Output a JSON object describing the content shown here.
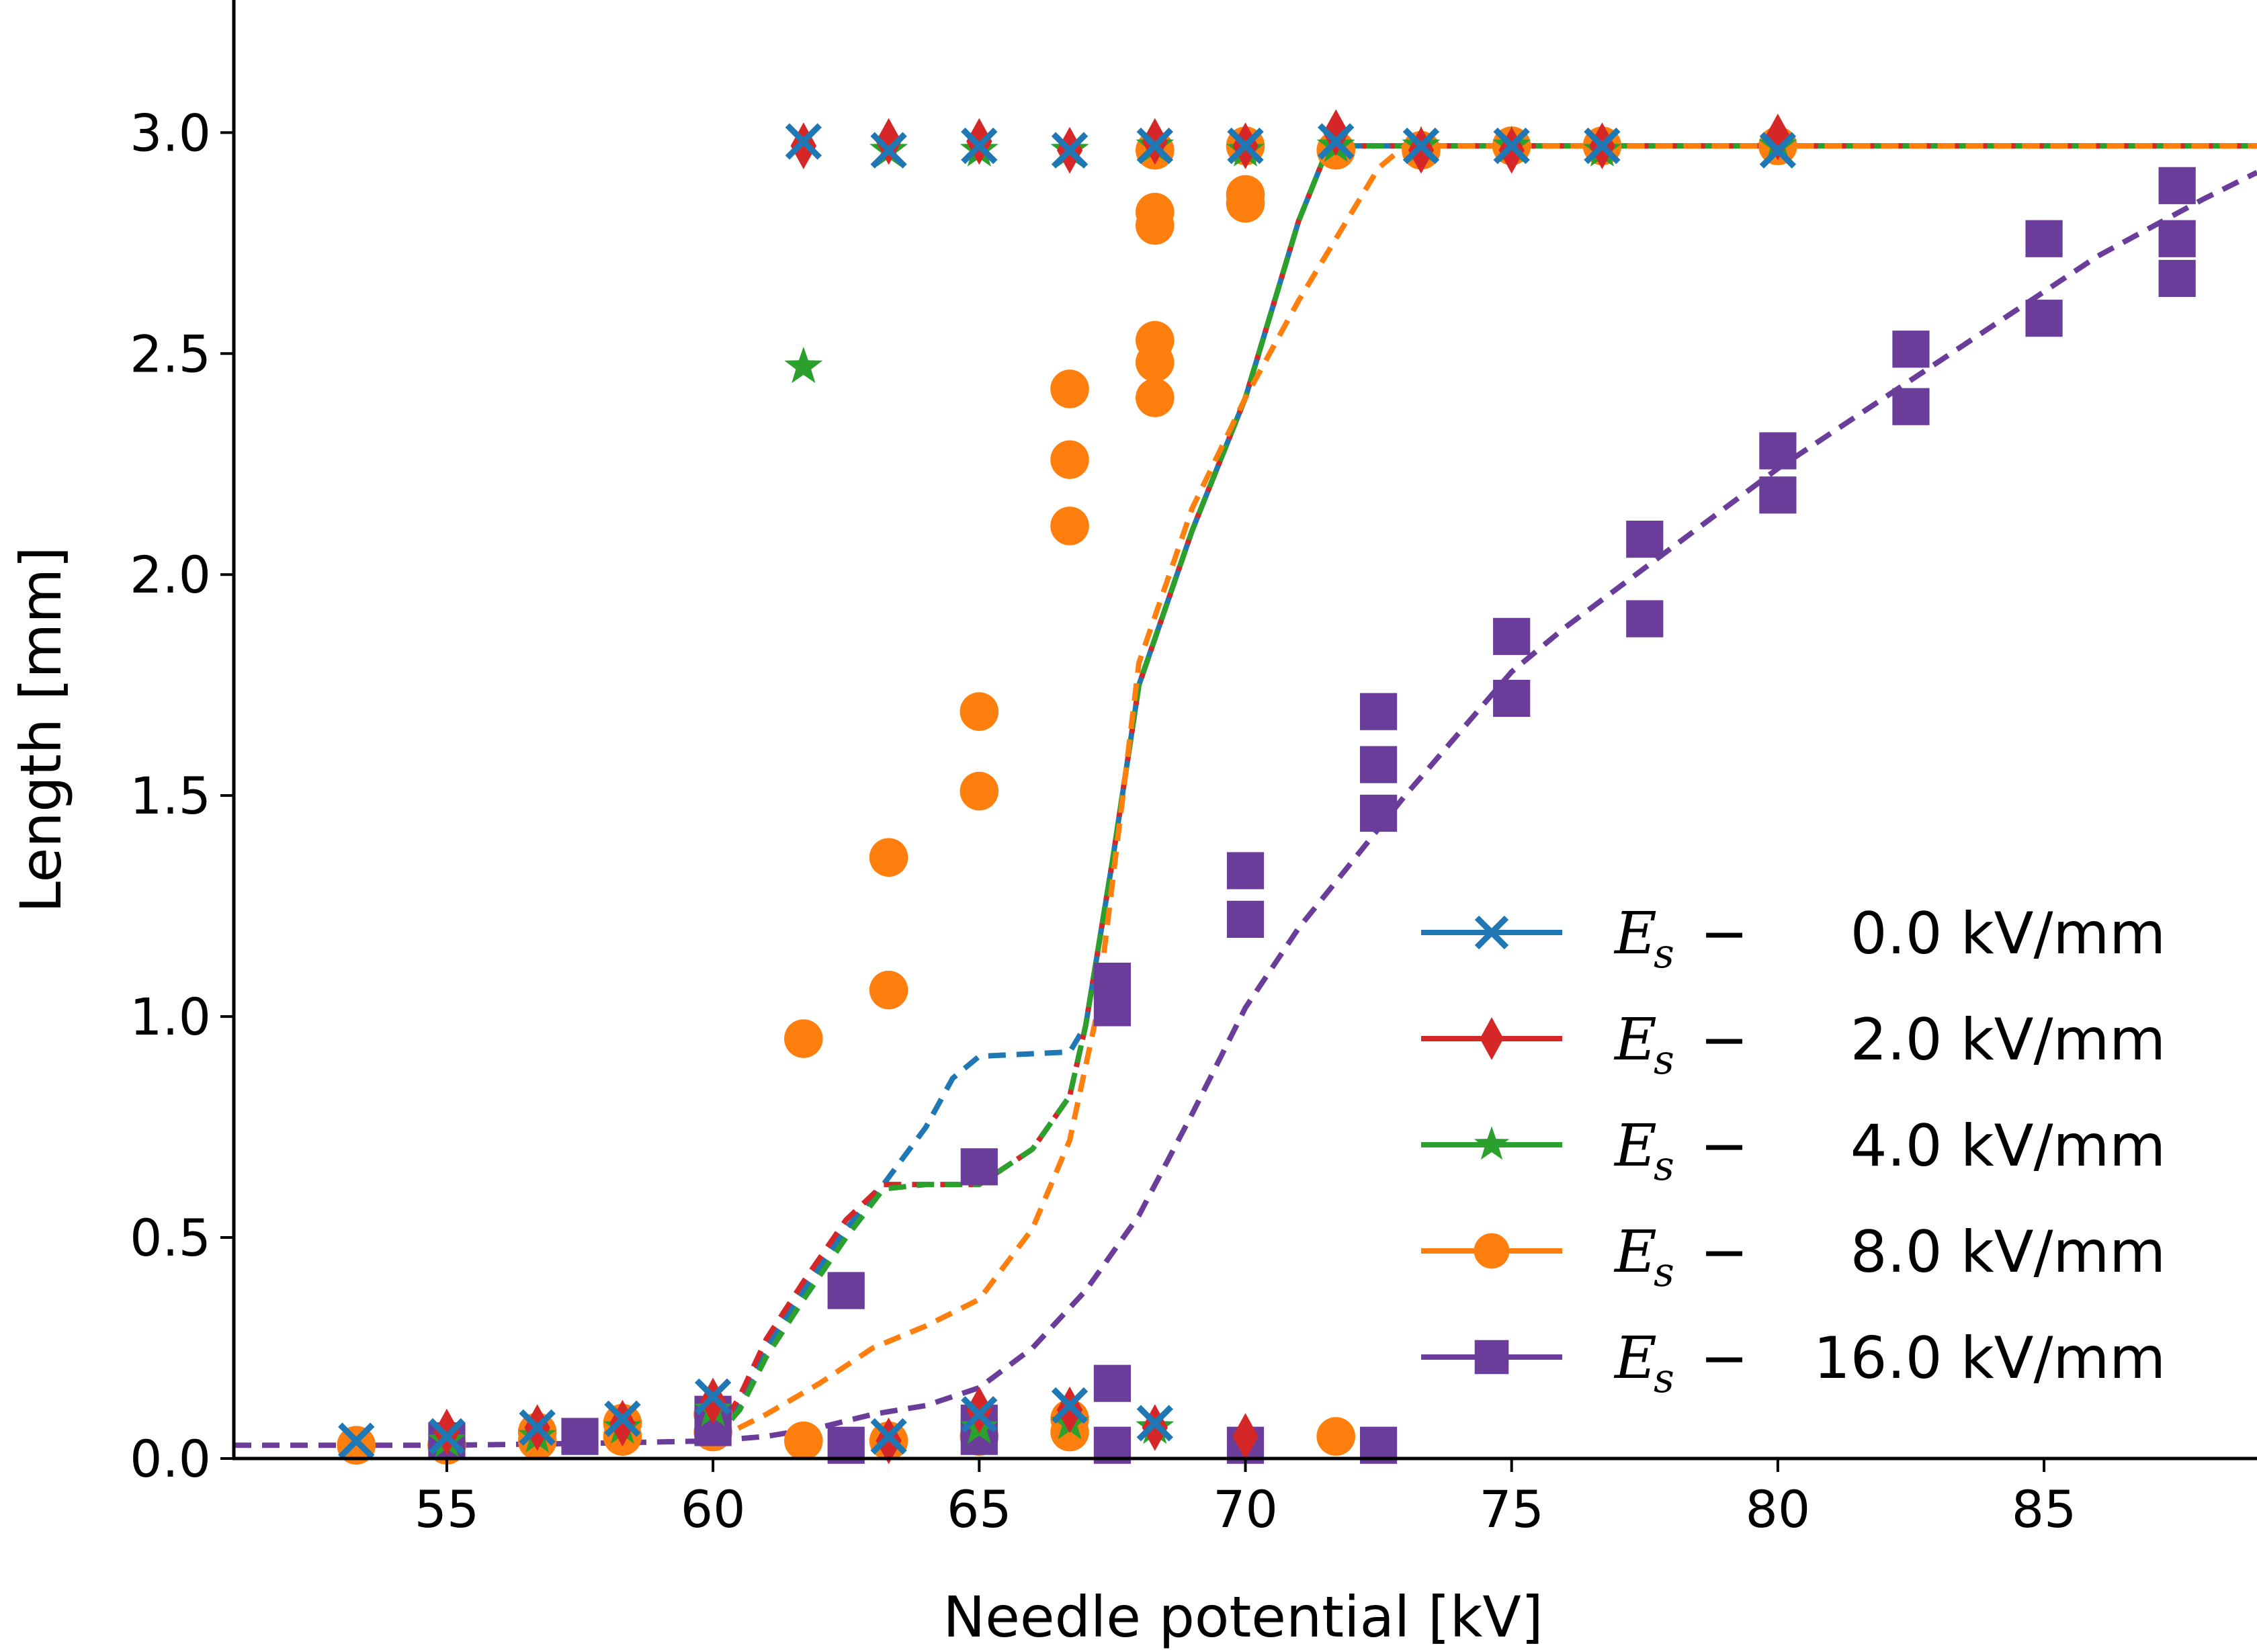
{
  "chart_data": {
    "type": "scatter",
    "title": "",
    "xlabel": "Needle potential [kV]",
    "ylabel": "Length [mm]",
    "xlim": [
      51,
      89
    ],
    "ylim": [
      0,
      3.3
    ],
    "xticks": [
      "55",
      "60",
      "65",
      "70",
      "75",
      "80",
      "85"
    ],
    "yticks": [
      "0.0",
      "0.5",
      "1.0",
      "1.5",
      "2.0",
      "2.5",
      "3.0"
    ],
    "legend_position": "lower-right",
    "series": [
      {
        "name": "0.0 kV/mm",
        "legend_symbol": "E",
        "legend_subscript": "s",
        "legend_op": "−",
        "color": "#1f77b4",
        "marker": "x",
        "points": [
          [
            53.3,
            0.04
          ],
          [
            55,
            0.05
          ],
          [
            56.7,
            0.07
          ],
          [
            58.3,
            0.09
          ],
          [
            60,
            0.14
          ],
          [
            61.7,
            2.98
          ],
          [
            63.3,
            2.96
          ],
          [
            63.3,
            0.05
          ],
          [
            65,
            2.97
          ],
          [
            65,
            0.1
          ],
          [
            66.7,
            2.96
          ],
          [
            66.7,
            0.12
          ],
          [
            68.3,
            2.97
          ],
          [
            68.3,
            0.08
          ],
          [
            70,
            2.97
          ],
          [
            71.7,
            2.98
          ],
          [
            73.3,
            2.97
          ],
          [
            75,
            2.97
          ],
          [
            76.7,
            2.97
          ],
          [
            80,
            2.96
          ]
        ],
        "fit_curve": [
          [
            60,
            0.04
          ],
          [
            60.5,
            0.12
          ],
          [
            61,
            0.25
          ],
          [
            61.7,
            0.38
          ],
          [
            62.5,
            0.52
          ],
          [
            63.2,
            0.62
          ],
          [
            64,
            0.75
          ],
          [
            64.5,
            0.86
          ],
          [
            65,
            0.91
          ],
          [
            66.7,
            0.92
          ],
          [
            67,
            0.98
          ],
          [
            67.5,
            1.35
          ],
          [
            68,
            1.75
          ],
          [
            69,
            2.1
          ],
          [
            70,
            2.4
          ],
          [
            71,
            2.8
          ],
          [
            71.5,
            2.95
          ],
          [
            72,
            2.97
          ],
          [
            89,
            2.97
          ]
        ]
      },
      {
        "name": "2.0 kV/mm",
        "legend_symbol": "E",
        "legend_subscript": "s",
        "legend_op": "−",
        "color": "#d62728",
        "marker": "d",
        "points": [
          [
            55,
            0.06
          ],
          [
            56.7,
            0.07
          ],
          [
            58.3,
            0.08
          ],
          [
            60,
            0.13
          ],
          [
            61.7,
            2.97
          ],
          [
            63.3,
            2.98
          ],
          [
            63.3,
            0.04
          ],
          [
            65,
            2.98
          ],
          [
            65,
            0.11
          ],
          [
            66.7,
            2.96
          ],
          [
            66.7,
            0.11
          ],
          [
            68.3,
            2.98
          ],
          [
            68.3,
            0.07
          ],
          [
            70,
            2.97
          ],
          [
            70,
            0.05
          ],
          [
            71.7,
            3.0
          ],
          [
            73.3,
            2.96
          ],
          [
            75,
            2.96
          ],
          [
            76.7,
            2.97
          ],
          [
            80,
            2.99
          ]
        ],
        "fit_curve": [
          [
            60,
            0.04
          ],
          [
            60.5,
            0.14
          ],
          [
            61,
            0.27
          ],
          [
            61.7,
            0.4
          ],
          [
            62.5,
            0.54
          ],
          [
            63.2,
            0.62
          ],
          [
            64,
            0.62
          ],
          [
            65,
            0.62
          ],
          [
            66,
            0.7
          ],
          [
            66.7,
            0.82
          ],
          [
            67,
            0.98
          ],
          [
            67.5,
            1.35
          ],
          [
            68,
            1.75
          ],
          [
            69,
            2.1
          ],
          [
            70,
            2.4
          ],
          [
            71,
            2.8
          ],
          [
            71.5,
            2.95
          ],
          [
            72,
            2.97
          ],
          [
            89,
            2.97
          ]
        ]
      },
      {
        "name": "4.0 kV/mm",
        "legend_symbol": "E",
        "legend_subscript": "s",
        "legend_op": "−",
        "color": "#2ca02c",
        "marker": "*",
        "points": [
          [
            55,
            0.04
          ],
          [
            56.7,
            0.05
          ],
          [
            58.3,
            0.07
          ],
          [
            60,
            0.11
          ],
          [
            61.7,
            2.47
          ],
          [
            63.3,
            2.96
          ],
          [
            65,
            2.96
          ],
          [
            65,
            0.07
          ],
          [
            66.7,
            2.96
          ],
          [
            66.7,
            0.08
          ],
          [
            68.3,
            2.97
          ],
          [
            68.3,
            0.07
          ],
          [
            70,
            2.96
          ],
          [
            71.7,
            2.97
          ],
          [
            73.3,
            2.97
          ],
          [
            75,
            2.97
          ],
          [
            76.7,
            2.96
          ],
          [
            80,
            2.97
          ]
        ],
        "fit_curve": [
          [
            60,
            0.04
          ],
          [
            60.5,
            0.11
          ],
          [
            61,
            0.23
          ],
          [
            61.7,
            0.36
          ],
          [
            62.5,
            0.5
          ],
          [
            63.2,
            0.61
          ],
          [
            64,
            0.62
          ],
          [
            65,
            0.62
          ],
          [
            66,
            0.7
          ],
          [
            66.7,
            0.82
          ],
          [
            67,
            0.98
          ],
          [
            67.5,
            1.35
          ],
          [
            68,
            1.75
          ],
          [
            69,
            2.1
          ],
          [
            70,
            2.4
          ],
          [
            71,
            2.8
          ],
          [
            71.5,
            2.95
          ],
          [
            72,
            2.97
          ],
          [
            89,
            2.97
          ]
        ]
      },
      {
        "name": "8.0 kV/mm",
        "legend_symbol": "E",
        "legend_subscript": "s",
        "legend_op": "−",
        "color": "#ff7f0e",
        "marker": "o",
        "points": [
          [
            53.3,
            0.03
          ],
          [
            55,
            0.03
          ],
          [
            56.7,
            0.04
          ],
          [
            56.7,
            0.06
          ],
          [
            58.3,
            0.05
          ],
          [
            58.3,
            0.08
          ],
          [
            60,
            0.06
          ],
          [
            60,
            0.1
          ],
          [
            61.7,
            0.95
          ],
          [
            61.7,
            0.04
          ],
          [
            63.3,
            1.36
          ],
          [
            63.3,
            1.06
          ],
          [
            63.3,
            0.04
          ],
          [
            65,
            1.69
          ],
          [
            65,
            1.51
          ],
          [
            65,
            0.05
          ],
          [
            66.7,
            2.42
          ],
          [
            66.7,
            2.26
          ],
          [
            66.7,
            2.11
          ],
          [
            66.7,
            0.06
          ],
          [
            66.7,
            0.09
          ],
          [
            68.3,
            2.82
          ],
          [
            68.3,
            2.79
          ],
          [
            68.3,
            2.53
          ],
          [
            68.3,
            2.48
          ],
          [
            68.3,
            2.4
          ],
          [
            68.3,
            2.96
          ],
          [
            70,
            2.97
          ],
          [
            70,
            2.86
          ],
          [
            70,
            2.84
          ],
          [
            71.7,
            2.96
          ],
          [
            71.7,
            0.05
          ],
          [
            73.3,
            2.96
          ],
          [
            75,
            2.97
          ],
          [
            76.7,
            2.97
          ],
          [
            80,
            2.97
          ]
        ],
        "fit_curve": [
          [
            60,
            0.04
          ],
          [
            61,
            0.1
          ],
          [
            62,
            0.17
          ],
          [
            63,
            0.25
          ],
          [
            64,
            0.3
          ],
          [
            65,
            0.36
          ],
          [
            66,
            0.52
          ],
          [
            66.7,
            0.72
          ],
          [
            67.2,
            1.0
          ],
          [
            67.6,
            1.4
          ],
          [
            68,
            1.8
          ],
          [
            69,
            2.15
          ],
          [
            70,
            2.4
          ],
          [
            71,
            2.62
          ],
          [
            72,
            2.82
          ],
          [
            72.5,
            2.92
          ],
          [
            73,
            2.97
          ],
          [
            89,
            2.97
          ]
        ]
      },
      {
        "name": "16.0 kV/mm",
        "legend_symbol": "E",
        "legend_subscript": "s",
        "legend_op": "−",
        "color": "#6a3d9a",
        "marker": "s",
        "points": [
          [
            55,
            0.04
          ],
          [
            57.5,
            0.05
          ],
          [
            60,
            0.07
          ],
          [
            60,
            0.1
          ],
          [
            62.5,
            0.38
          ],
          [
            62.5,
            0.03
          ],
          [
            65,
            0.66
          ],
          [
            65,
            0.05
          ],
          [
            65,
            0.08
          ],
          [
            67.5,
            1.08
          ],
          [
            67.5,
            1.02
          ],
          [
            67.5,
            0.17
          ],
          [
            67.5,
            0.03
          ],
          [
            70,
            1.33
          ],
          [
            70,
            1.22
          ],
          [
            70,
            0.03
          ],
          [
            72.5,
            1.69
          ],
          [
            72.5,
            1.57
          ],
          [
            72.5,
            1.46
          ],
          [
            72.5,
            0.03
          ],
          [
            75,
            1.86
          ],
          [
            75,
            1.72
          ],
          [
            77.5,
            2.08
          ],
          [
            77.5,
            1.9
          ],
          [
            80,
            2.28
          ],
          [
            80,
            2.18
          ],
          [
            82.5,
            2.51
          ],
          [
            82.5,
            2.38
          ],
          [
            85,
            2.76
          ],
          [
            85,
            2.58
          ],
          [
            87.5,
            2.88
          ],
          [
            87.5,
            2.76
          ],
          [
            87.5,
            2.67
          ]
        ],
        "fit_curve": [
          [
            51,
            0.03
          ],
          [
            55,
            0.03
          ],
          [
            58,
            0.035
          ],
          [
            60,
            0.04
          ],
          [
            61,
            0.05
          ],
          [
            62,
            0.07
          ],
          [
            63,
            0.1
          ],
          [
            64,
            0.12
          ],
          [
            65,
            0.16
          ],
          [
            66,
            0.25
          ],
          [
            67,
            0.38
          ],
          [
            68,
            0.55
          ],
          [
            69,
            0.78
          ],
          [
            70,
            1.02
          ],
          [
            71,
            1.2
          ],
          [
            72,
            1.35
          ],
          [
            73,
            1.5
          ],
          [
            74,
            1.64
          ],
          [
            75,
            1.78
          ],
          [
            76,
            1.88
          ],
          [
            77,
            1.97
          ],
          [
            78,
            2.06
          ],
          [
            80,
            2.24
          ],
          [
            82,
            2.4
          ],
          [
            84,
            2.56
          ],
          [
            86,
            2.72
          ],
          [
            88,
            2.85
          ],
          [
            89,
            2.91
          ]
        ]
      }
    ]
  }
}
